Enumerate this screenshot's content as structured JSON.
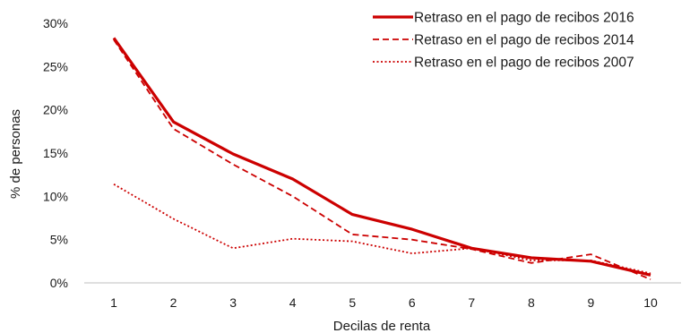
{
  "chart_data": {
    "type": "line",
    "categories": [
      "1",
      "2",
      "3",
      "4",
      "5",
      "6",
      "7",
      "8",
      "9",
      "10"
    ],
    "series": [
      {
        "name": "Retraso en el pago de recibos 2016",
        "values": [
          28.3,
          18.6,
          14.9,
          12.0,
          7.9,
          6.2,
          4.0,
          2.9,
          2.5,
          0.9
        ],
        "style": "solid",
        "color": "#cc0000"
      },
      {
        "name": "Retraso en el pago de recibos 2014",
        "values": [
          28.1,
          17.8,
          13.7,
          10.0,
          5.6,
          5.0,
          3.9,
          2.3,
          3.3,
          0.4
        ],
        "style": "dashed",
        "color": "#cc0000"
      },
      {
        "name": "Retraso en el pago de recibos 2007",
        "values": [
          11.4,
          7.4,
          4.0,
          5.1,
          4.8,
          3.4,
          4.0,
          2.6,
          2.6,
          1.1
        ],
        "style": "dotted",
        "color": "#cc0000"
      }
    ],
    "xlabel": "Decilas de renta",
    "ylabel": "% de personas",
    "ylim": [
      0,
      30
    ],
    "yticks": [
      "0%",
      "5%",
      "10%",
      "15%",
      "20%",
      "25%",
      "30%"
    ],
    "ytick_values": [
      0,
      5,
      10,
      15,
      20,
      25,
      30
    ],
    "grid": false,
    "legend": "top-right"
  }
}
